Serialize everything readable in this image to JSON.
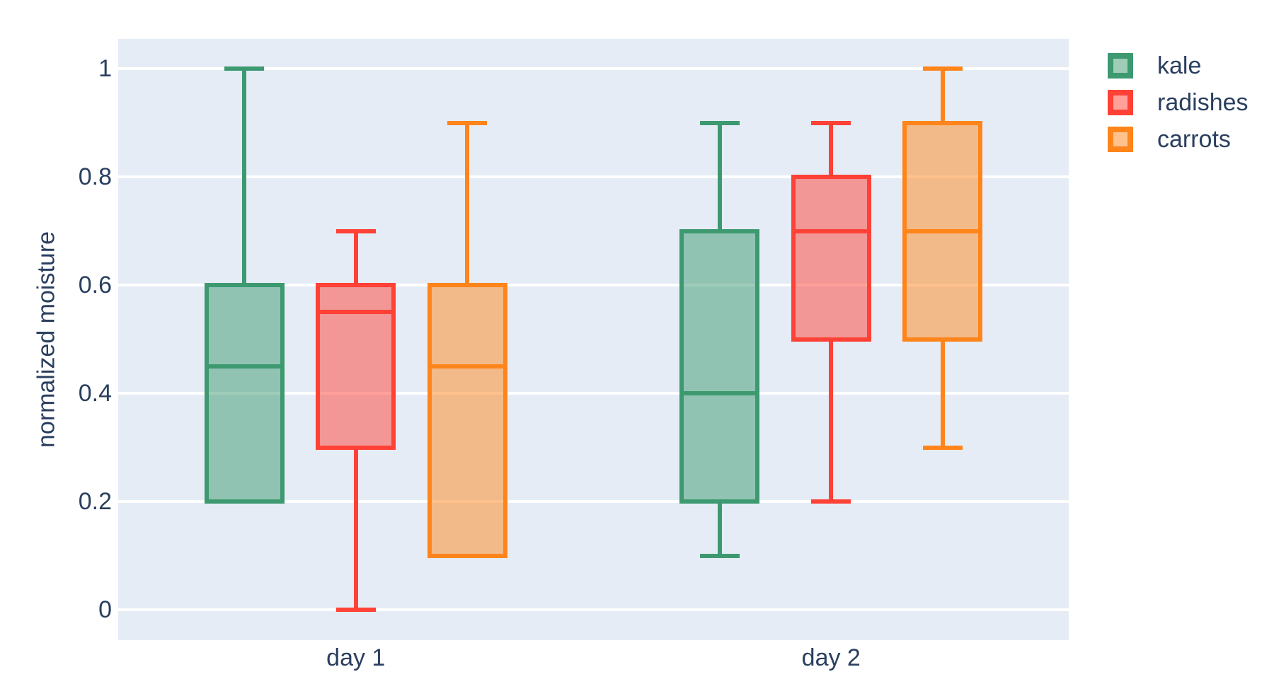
{
  "chart_data": {
    "type": "box",
    "boxmode": "group",
    "title": "",
    "xlabel": "",
    "ylabel": "normalized moisture",
    "categories": [
      "day 1",
      "day 2"
    ],
    "ytick_values": [
      0,
      0.2,
      0.4,
      0.6,
      0.8,
      1
    ],
    "ytick_labels": [
      "0",
      "0.2",
      "0.4",
      "0.6",
      "0.8",
      "1"
    ],
    "ylim": [
      -0.056,
      1.055
    ],
    "grid": true,
    "legend_position": "top-right",
    "series": [
      {
        "name": "kale",
        "line_color": "#3D9970",
        "boxes": [
          {
            "category": "day 1",
            "low": 0.2,
            "q1": 0.2,
            "median": 0.45,
            "q3": 0.6,
            "high": 1.0
          },
          {
            "category": "day 2",
            "low": 0.1,
            "q1": 0.2,
            "median": 0.4,
            "q3": 0.7,
            "high": 0.9
          }
        ]
      },
      {
        "name": "radishes",
        "line_color": "#FF4136",
        "boxes": [
          {
            "category": "day 1",
            "low": 0.0,
            "q1": 0.3,
            "median": 0.55,
            "q3": 0.6,
            "high": 0.7
          },
          {
            "category": "day 2",
            "low": 0.2,
            "q1": 0.5,
            "median": 0.7,
            "q3": 0.8,
            "high": 0.9
          }
        ]
      },
      {
        "name": "carrots",
        "line_color": "#FF851B",
        "boxes": [
          {
            "category": "day 1",
            "low": 0.1,
            "q1": 0.1,
            "median": 0.45,
            "q3": 0.6,
            "high": 0.9
          },
          {
            "category": "day 2",
            "low": 0.3,
            "q1": 0.5,
            "median": 0.7,
            "q3": 0.9,
            "high": 1.0
          }
        ]
      }
    ],
    "colors": {
      "plot_bg": "#E5ECF6",
      "paper_bg": "#FFFFFF",
      "grid": "#FFFFFF",
      "text": "#2A3F5F",
      "fill_alpha": 0.5
    }
  }
}
